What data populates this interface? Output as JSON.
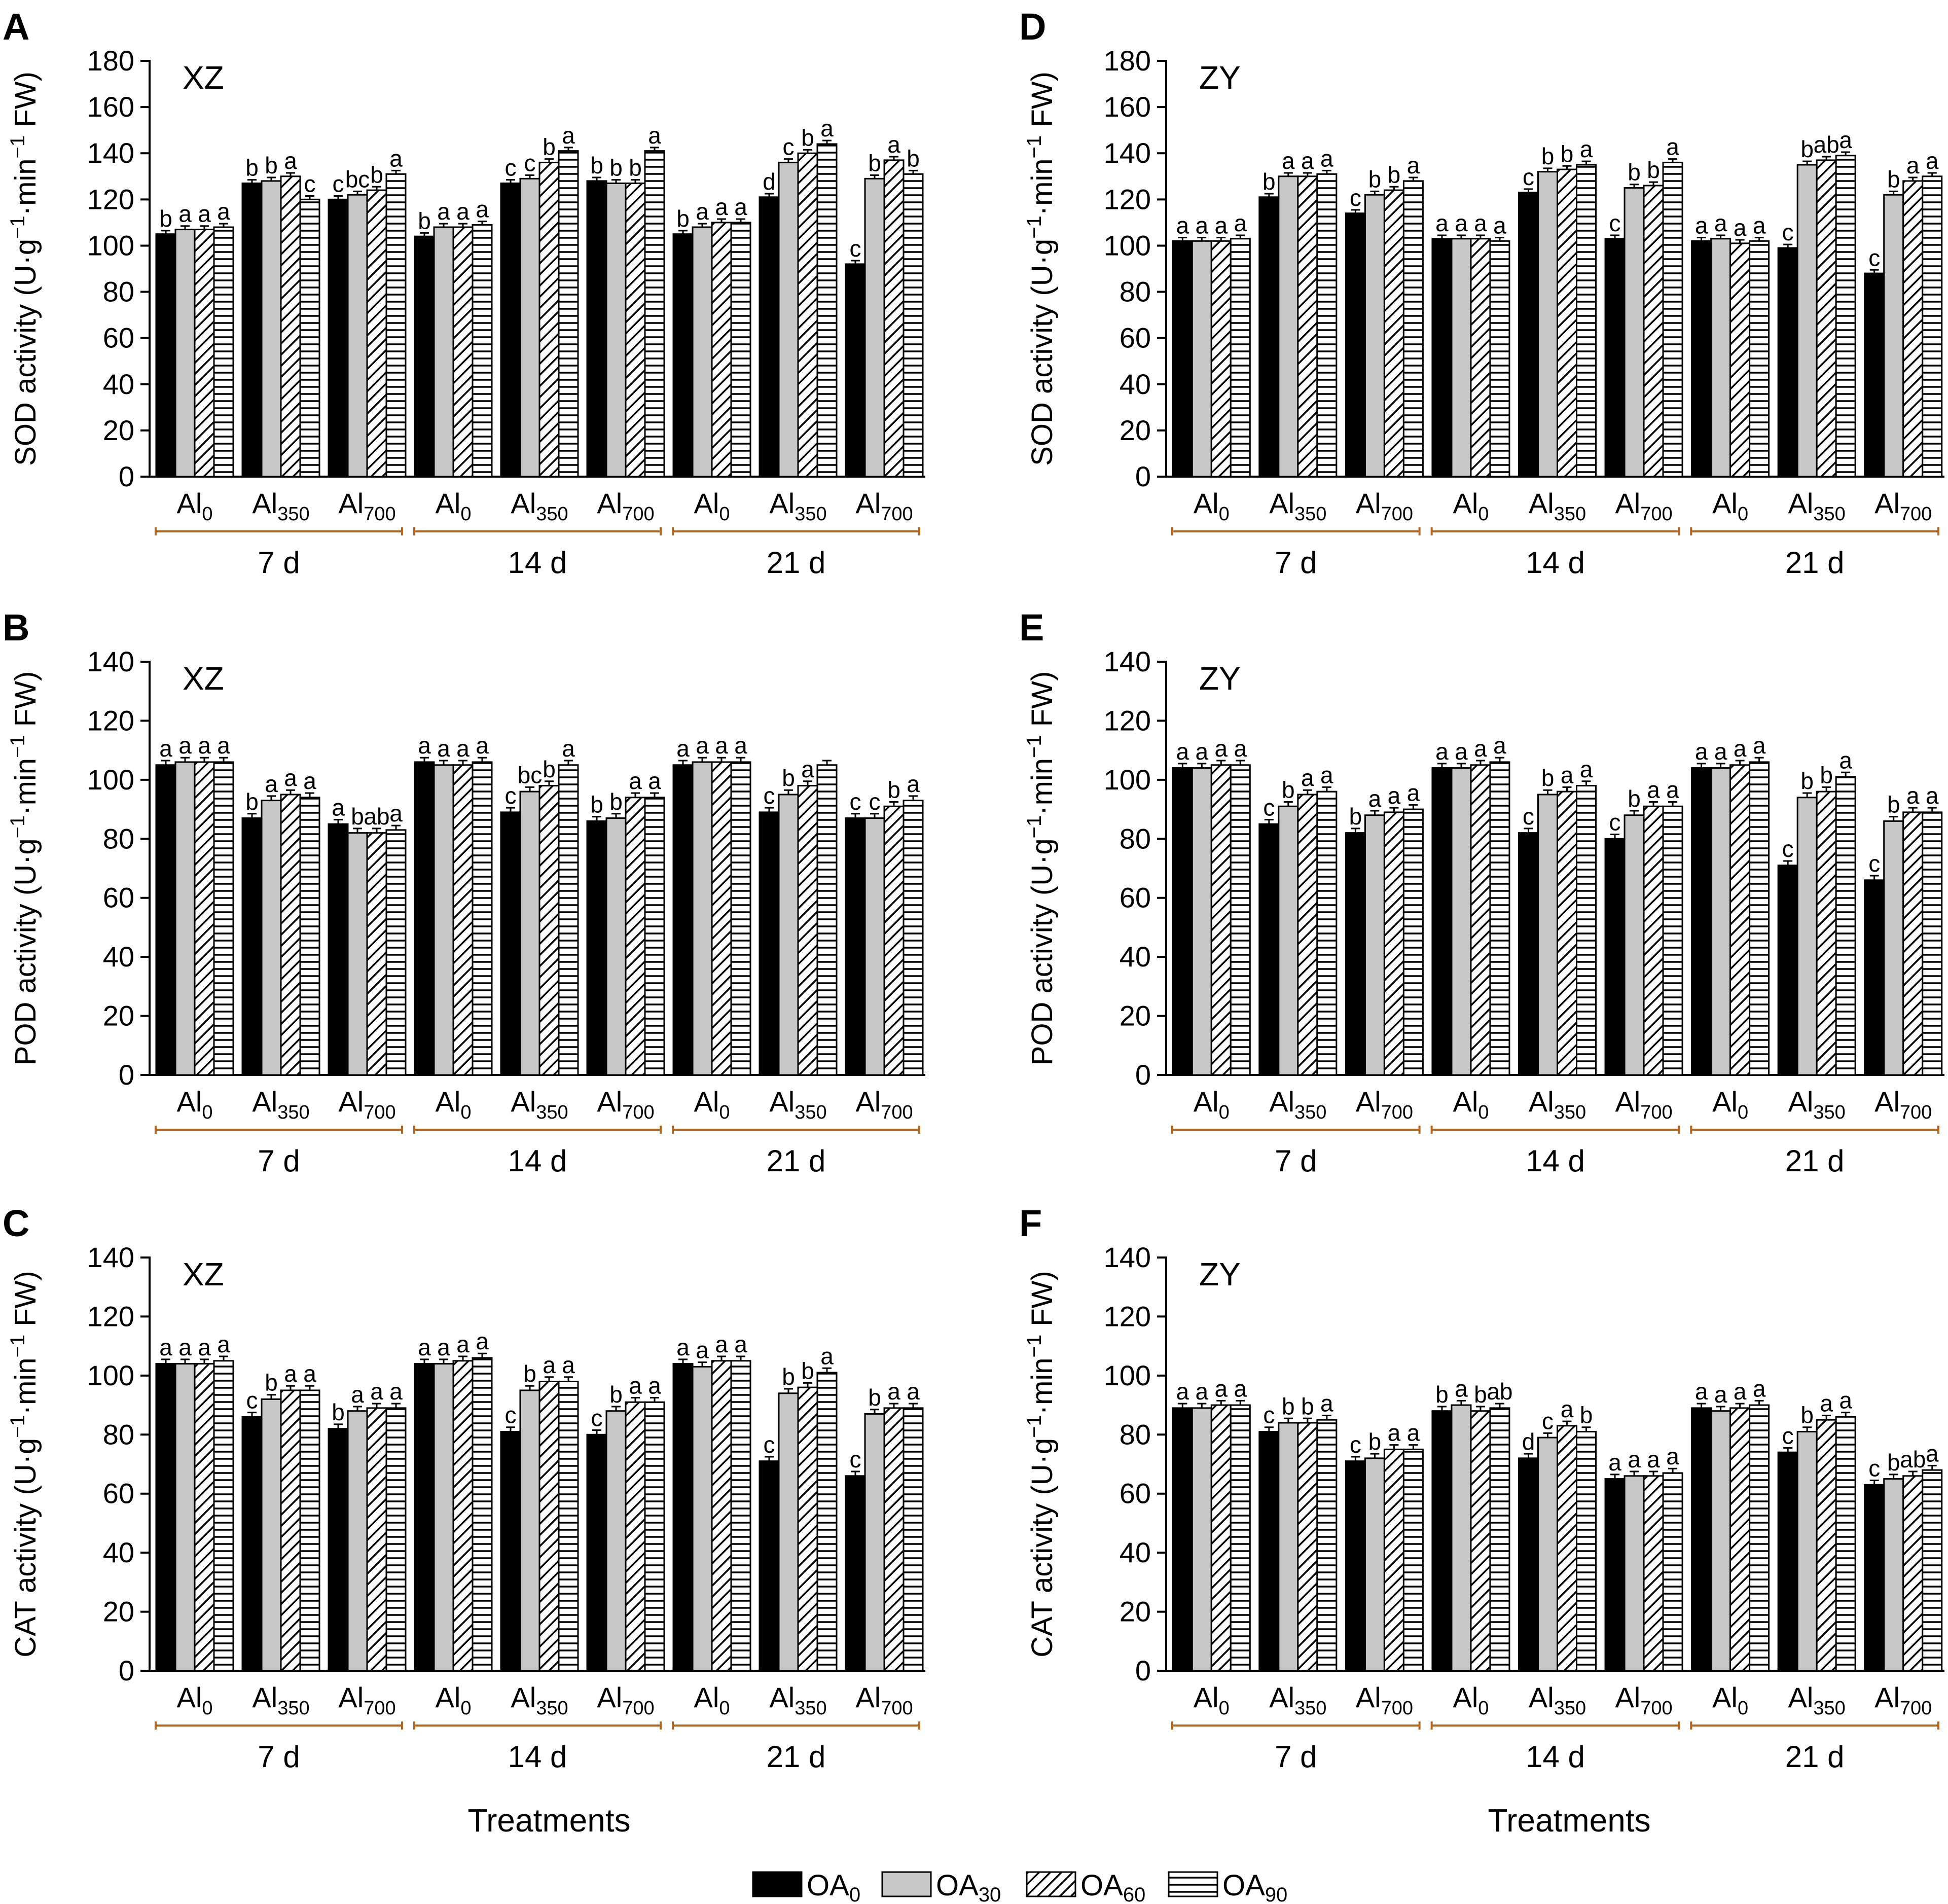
{
  "figure": {
    "x_title": "Treatments",
    "legend": [
      {
        "main": "OA",
        "sub": "0",
        "pattern": "solid"
      },
      {
        "main": "OA",
        "sub": "30",
        "pattern": "gray"
      },
      {
        "main": "OA",
        "sub": "60",
        "pattern": "diag"
      },
      {
        "main": "OA",
        "sub": "90",
        "pattern": "horiz"
      }
    ],
    "groups": [
      {
        "main": "Al",
        "sub": "0"
      },
      {
        "main": "Al",
        "sub": "350"
      },
      {
        "main": "Al",
        "sub": "700"
      }
    ],
    "days": [
      "7 d",
      "14 d",
      "21 d"
    ],
    "colors": {
      "solid": "#000000",
      "gray": "#c8c8c8",
      "bracket": "#b5651d",
      "axis": "#000000"
    }
  },
  "chart_data": [
    {
      "type": "bar",
      "panel": "A",
      "cultivar": "XZ",
      "ylabel": "SOD activity (U·g⁻¹·min⁻¹ FW)",
      "ylabel_main": "SOD activity (U·g",
      "ylim": [
        0,
        180
      ],
      "yticks": [
        0,
        20,
        40,
        60,
        80,
        100,
        120,
        140,
        160,
        180
      ],
      "values": [
        [
          [
            105,
            107,
            107,
            108
          ],
          [
            127,
            128,
            130,
            120
          ],
          [
            120,
            122,
            124,
            131
          ]
        ],
        [
          [
            104,
            108,
            108,
            109
          ],
          [
            127,
            129,
            136,
            141
          ],
          [
            128,
            127,
            127,
            141
          ]
        ],
        [
          [
            105,
            108,
            110,
            110
          ],
          [
            121,
            136,
            140,
            144
          ],
          [
            92,
            129,
            137,
            131
          ]
        ]
      ],
      "letters": [
        [
          [
            "b",
            "a",
            "a",
            "a"
          ],
          [
            "b",
            "b",
            "a",
            "c"
          ],
          [
            "c",
            "bc",
            "b",
            "a"
          ]
        ],
        [
          [
            "b",
            "a",
            "a",
            "a"
          ],
          [
            "c",
            "c",
            "b",
            "a"
          ],
          [
            "b",
            "b",
            "b",
            "a"
          ]
        ],
        [
          [
            "b",
            "a",
            "a",
            "a"
          ],
          [
            "d",
            "c",
            "b",
            "a"
          ],
          [
            "c",
            "b",
            "a",
            "b"
          ]
        ]
      ]
    },
    {
      "type": "bar",
      "panel": "B",
      "cultivar": "XZ",
      "ylabel": "POD activity (U·g⁻¹·min⁻¹ FW)",
      "ylabel_main": "POD activity (U·g",
      "ylim": [
        0,
        140
      ],
      "yticks": [
        0,
        20,
        40,
        60,
        80,
        100,
        120,
        140
      ],
      "values": [
        [
          [
            105,
            106,
            106,
            106
          ],
          [
            87,
            93,
            95,
            94
          ],
          [
            85,
            82,
            82,
            83
          ]
        ],
        [
          [
            106,
            105,
            105,
            106
          ],
          [
            89,
            96,
            98,
            105
          ],
          [
            86,
            87,
            94,
            94
          ]
        ],
        [
          [
            105,
            106,
            106,
            106
          ],
          [
            89,
            95,
            98,
            105
          ],
          [
            87,
            87,
            91,
            93
          ]
        ]
      ],
      "letters": [
        [
          [
            "a",
            "a",
            "a",
            "a"
          ],
          [
            "b",
            "a",
            "a",
            "a"
          ],
          [
            "a",
            "b",
            "ab",
            "a"
          ]
        ],
        [
          [
            "a",
            "a",
            "a",
            "a"
          ],
          [
            "c",
            "bc",
            "b",
            "a"
          ],
          [
            "b",
            "b",
            "a",
            "a"
          ]
        ],
        [
          [
            "a",
            "a",
            "a",
            "a"
          ],
          [
            "c",
            "b",
            "a",
            ""
          ],
          [
            "c",
            "c",
            "b",
            "a"
          ]
        ]
      ]
    },
    {
      "type": "bar",
      "panel": "C",
      "cultivar": "XZ",
      "ylabel": "CAT activity (U·g⁻¹·min⁻¹ FW)",
      "ylabel_main": "CAT activity (U·g",
      "ylim": [
        0,
        140
      ],
      "yticks": [
        0,
        20,
        40,
        60,
        80,
        100,
        120,
        140
      ],
      "values": [
        [
          [
            104,
            104,
            104,
            105
          ],
          [
            86,
            92,
            95,
            95
          ],
          [
            82,
            88,
            89,
            89
          ]
        ],
        [
          [
            104,
            104,
            105,
            106
          ],
          [
            81,
            95,
            98,
            98
          ],
          [
            80,
            88,
            91,
            91
          ]
        ],
        [
          [
            104,
            103,
            105,
            105
          ],
          [
            71,
            94,
            96,
            101
          ],
          [
            66,
            87,
            89,
            89
          ]
        ]
      ],
      "letters": [
        [
          [
            "a",
            "a",
            "a",
            "a"
          ],
          [
            "c",
            "b",
            "a",
            "a"
          ],
          [
            "b",
            "a",
            "a",
            "a"
          ]
        ],
        [
          [
            "a",
            "a",
            "a",
            "a"
          ],
          [
            "c",
            "b",
            "a",
            "a"
          ],
          [
            "c",
            "b",
            "a",
            "a"
          ]
        ],
        [
          [
            "a",
            "a",
            "a",
            "a"
          ],
          [
            "c",
            "b",
            "b",
            "a"
          ],
          [
            "c",
            "b",
            "a",
            "a"
          ]
        ]
      ]
    },
    {
      "type": "bar",
      "panel": "D",
      "cultivar": "ZY",
      "ylabel": "SOD activity (U·g⁻¹·min⁻¹ FW)",
      "ylabel_main": "SOD activity (U·g",
      "ylim": [
        0,
        180
      ],
      "yticks": [
        0,
        20,
        40,
        60,
        80,
        100,
        120,
        140,
        160,
        180
      ],
      "values": [
        [
          [
            102,
            102,
            102,
            103
          ],
          [
            121,
            130,
            130,
            131
          ],
          [
            114,
            122,
            124,
            128
          ]
        ],
        [
          [
            103,
            103,
            103,
            102
          ],
          [
            123,
            132,
            133,
            135
          ],
          [
            103,
            125,
            126,
            136
          ]
        ],
        [
          [
            102,
            103,
            101,
            102
          ],
          [
            99,
            135,
            137,
            139
          ],
          [
            88,
            122,
            128,
            130
          ]
        ]
      ],
      "letters": [
        [
          [
            "a",
            "a",
            "a",
            "a"
          ],
          [
            "b",
            "a",
            "a",
            "a"
          ],
          [
            "c",
            "b",
            "b",
            "a"
          ]
        ],
        [
          [
            "a",
            "a",
            "a",
            "a"
          ],
          [
            "c",
            "b",
            "b",
            "a"
          ],
          [
            "c",
            "b",
            "b",
            "a"
          ]
        ],
        [
          [
            "a",
            "a",
            "a",
            "a"
          ],
          [
            "c",
            "b",
            "ab",
            "a"
          ],
          [
            "c",
            "b",
            "a",
            "a"
          ]
        ]
      ]
    },
    {
      "type": "bar",
      "panel": "E",
      "cultivar": "ZY",
      "ylabel": "POD activity (U·g⁻¹·min⁻¹ FW)",
      "ylabel_main": "POD activity (U·g",
      "ylim": [
        0,
        140
      ],
      "yticks": [
        0,
        20,
        40,
        60,
        80,
        100,
        120,
        140
      ],
      "values": [
        [
          [
            104,
            104,
            105,
            105
          ],
          [
            85,
            91,
            95,
            96
          ],
          [
            82,
            88,
            89,
            90
          ]
        ],
        [
          [
            104,
            104,
            105,
            106
          ],
          [
            82,
            95,
            96,
            98
          ],
          [
            80,
            88,
            91,
            91
          ]
        ],
        [
          [
            104,
            104,
            105,
            106
          ],
          [
            71,
            94,
            96,
            101
          ],
          [
            66,
            86,
            89,
            89
          ]
        ]
      ],
      "letters": [
        [
          [
            "a",
            "a",
            "a",
            "a"
          ],
          [
            "c",
            "b",
            "a",
            "a"
          ],
          [
            "b",
            "a",
            "a",
            "a"
          ]
        ],
        [
          [
            "a",
            "a",
            "a",
            "a"
          ],
          [
            "c",
            "b",
            "a",
            "a"
          ],
          [
            "c",
            "b",
            "a",
            "a"
          ]
        ],
        [
          [
            "a",
            "a",
            "a",
            "a"
          ],
          [
            "c",
            "b",
            "b",
            "a"
          ],
          [
            "c",
            "b",
            "a",
            "a"
          ]
        ]
      ]
    },
    {
      "type": "bar",
      "panel": "F",
      "cultivar": "ZY",
      "ylabel": "CAT activity (U·g⁻¹·min⁻¹ FW)",
      "ylabel_main": "CAT activity (U·g",
      "ylim": [
        0,
        140
      ],
      "yticks": [
        0,
        20,
        40,
        60,
        80,
        100,
        120,
        140
      ],
      "values": [
        [
          [
            89,
            89,
            90,
            90
          ],
          [
            81,
            84,
            84,
            85
          ],
          [
            71,
            72,
            75,
            75
          ]
        ],
        [
          [
            88,
            90,
            88,
            89
          ],
          [
            72,
            79,
            83,
            81
          ],
          [
            65,
            66,
            66,
            67
          ]
        ],
        [
          [
            89,
            88,
            89,
            90
          ],
          [
            74,
            81,
            85,
            86
          ],
          [
            63,
            65,
            66,
            68
          ]
        ]
      ],
      "letters": [
        [
          [
            "a",
            "a",
            "a",
            "a"
          ],
          [
            "c",
            "b",
            "b",
            "a"
          ],
          [
            "c",
            "b",
            "a",
            "a"
          ]
        ],
        [
          [
            "b",
            "a",
            "b",
            "ab"
          ],
          [
            "d",
            "c",
            "a",
            "b"
          ],
          [
            "a",
            "a",
            "a",
            "a"
          ]
        ],
        [
          [
            "a",
            "a",
            "a",
            "a"
          ],
          [
            "c",
            "b",
            "a",
            "a"
          ],
          [
            "c",
            "b",
            "ab",
            "a"
          ]
        ]
      ]
    }
  ]
}
